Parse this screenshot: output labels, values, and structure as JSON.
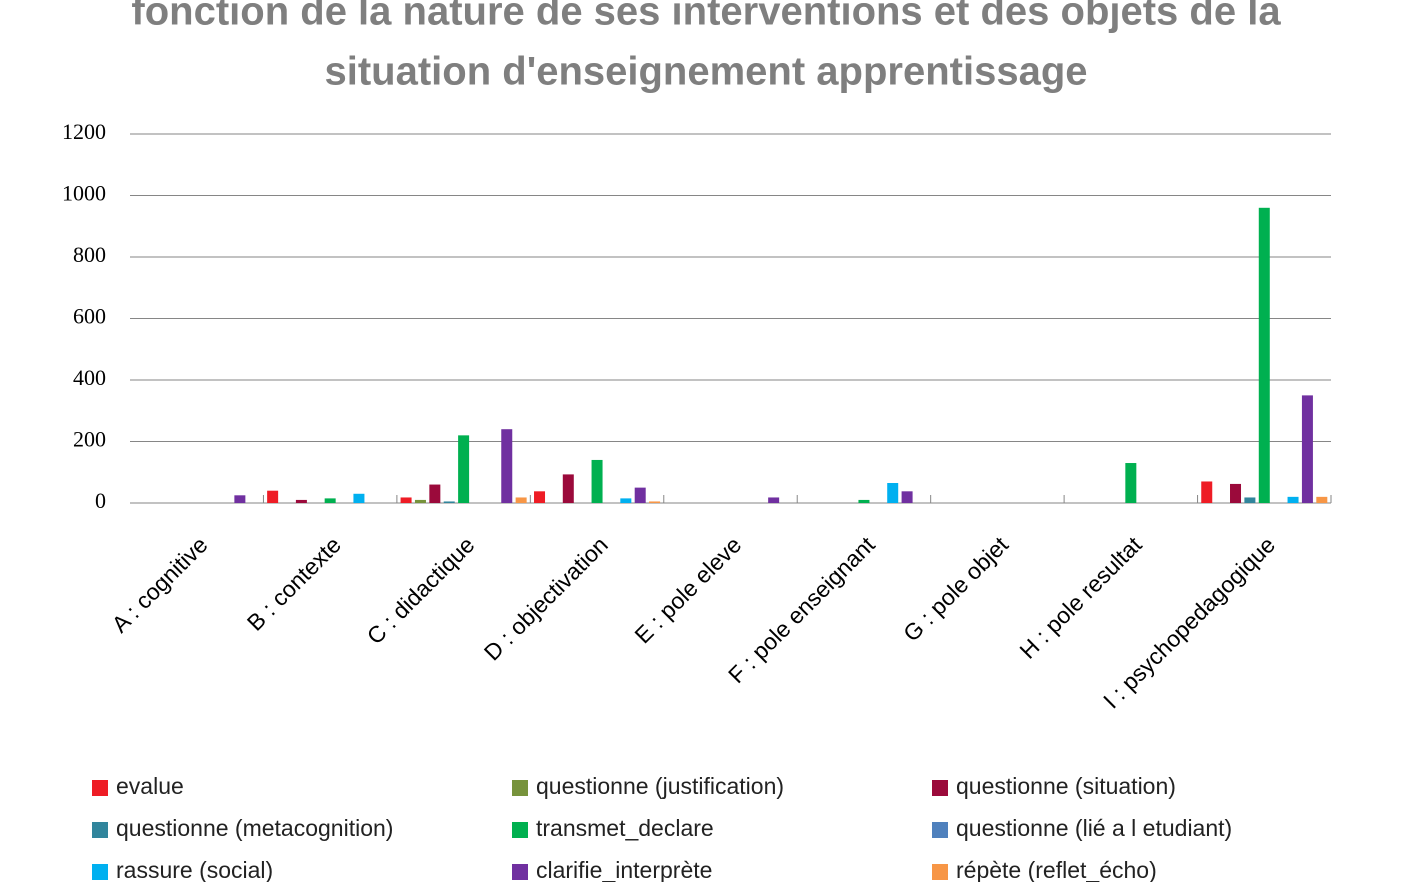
{
  "chart_data": {
    "type": "bar",
    "title": [
      "fonction de la nature de ses interventions et des objets de la",
      "situation d'enseignement apprentissage"
    ],
    "categories": [
      "A : cognitive",
      "B : contexte",
      "C : didactique",
      "D : objectivation",
      "E : pole eleve",
      "F : pole enseignant",
      "G : pole objet",
      "H : pole resultat",
      "I : psychopedagogique"
    ],
    "series": [
      {
        "name": "evalue",
        "color": "#ee1c25",
        "values": [
          0,
          40,
          18,
          38,
          0,
          0,
          0,
          0,
          70
        ]
      },
      {
        "name": "questionne (justification)",
        "color": "#77933c",
        "values": [
          0,
          0,
          10,
          0,
          0,
          0,
          0,
          0,
          0
        ]
      },
      {
        "name": "questionne (situation)",
        "color": "#9b0a3b",
        "values": [
          0,
          10,
          60,
          93,
          0,
          0,
          0,
          0,
          62
        ]
      },
      {
        "name": "questionne (metacognition)",
        "color": "#31859c",
        "values": [
          0,
          0,
          5,
          0,
          0,
          0,
          0,
          0,
          18
        ]
      },
      {
        "name": "transmet_declare",
        "color": "#00b050",
        "values": [
          0,
          15,
          220,
          140,
          0,
          10,
          0,
          130,
          960
        ]
      },
      {
        "name": "questionne (lié a l etudiant)",
        "color": "#4f81bd",
        "values": [
          0,
          0,
          0,
          0,
          0,
          0,
          0,
          0,
          0
        ]
      },
      {
        "name": "rassure (social)",
        "color": "#00b0f0",
        "values": [
          0,
          30,
          0,
          15,
          0,
          65,
          0,
          0,
          20
        ]
      },
      {
        "name": "clarifie_interprète",
        "color": "#7030a0",
        "values": [
          25,
          0,
          240,
          50,
          18,
          38,
          0,
          0,
          350
        ]
      },
      {
        "name": "répète (reflet_écho)",
        "color": "#f79646",
        "values": [
          0,
          0,
          18,
          5,
          0,
          0,
          0,
          0,
          20
        ]
      }
    ],
    "ylim": [
      0,
      1200
    ],
    "yticks": [
      0,
      200,
      400,
      600,
      800,
      1000,
      1200
    ],
    "grid": true,
    "legend": "bottom"
  }
}
